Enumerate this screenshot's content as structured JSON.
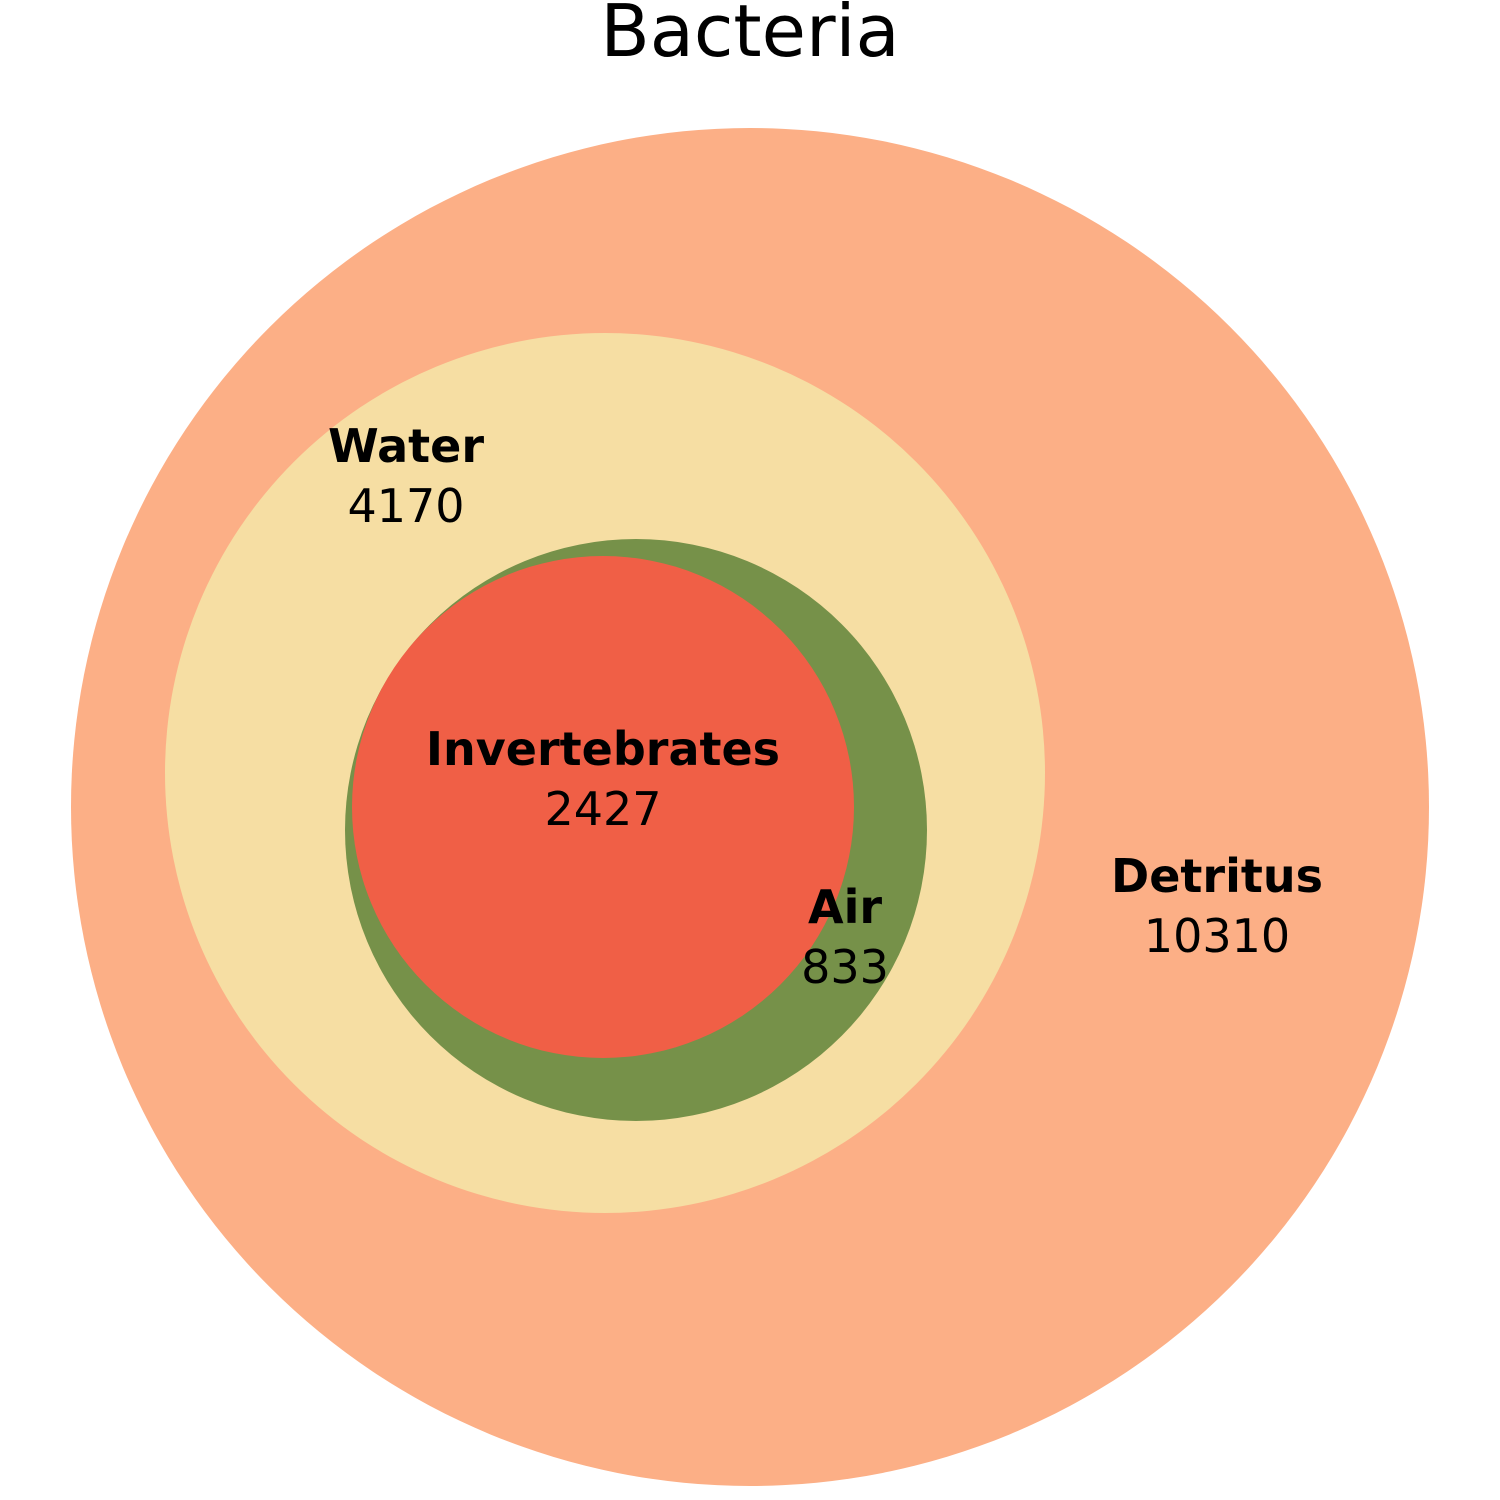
{
  "chart_data": {
    "type": "nested-circles",
    "title": "Bacteria",
    "circles": [
      {
        "name": "Detritus",
        "value": 10310,
        "color": "#fcaf86"
      },
      {
        "name": "Water",
        "value": 4170,
        "color": "#f6dea3"
      },
      {
        "name": "Air",
        "value": 833,
        "color": "#769149"
      },
      {
        "name": "Invertebrates",
        "value": 2427,
        "color": "#f05f46"
      }
    ]
  }
}
